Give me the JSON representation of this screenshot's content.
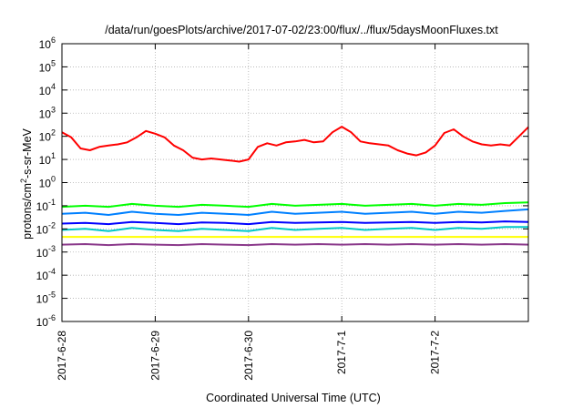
{
  "chart_data": {
    "type": "line",
    "title": "/data/run/goesPlots/archive/2017-07-02/23:00/flux/../flux/5daysMoonFluxes.txt",
    "xlabel": "Coordinated Universal Time (UTC)",
    "ylabel": {
      "base": "protons/cm",
      "sup": "2",
      "rest": "-s-sr-MeV"
    },
    "yscale": "log",
    "ylim": [
      1e-06,
      1000000.0
    ],
    "xlim": [
      0,
      5
    ],
    "grid": true,
    "y_ticks": [
      {
        "value": 1e-06,
        "base": "10",
        "exp": "-6"
      },
      {
        "value": 1e-05,
        "base": "10",
        "exp": "-5"
      },
      {
        "value": 0.0001,
        "base": "10",
        "exp": "-4"
      },
      {
        "value": 0.001,
        "base": "10",
        "exp": "-3"
      },
      {
        "value": 0.01,
        "base": "10",
        "exp": "-2"
      },
      {
        "value": 0.1,
        "base": "10",
        "exp": "-1"
      },
      {
        "value": 1,
        "base": "10",
        "exp": "0"
      },
      {
        "value": 10,
        "base": "10",
        "exp": "1"
      },
      {
        "value": 100,
        "base": "10",
        "exp": "2"
      },
      {
        "value": 1000,
        "base": "10",
        "exp": "3"
      },
      {
        "value": 10000,
        "base": "10",
        "exp": "4"
      },
      {
        "value": 100000,
        "base": "10",
        "exp": "5"
      },
      {
        "value": 1000000,
        "base": "10",
        "exp": "6"
      }
    ],
    "x_ticks": [
      {
        "value": 0,
        "label": "2017-6-28"
      },
      {
        "value": 1,
        "label": "2017-6-29"
      },
      {
        "value": 2,
        "label": "2017-6-30"
      },
      {
        "value": 3,
        "label": "2017-7-1"
      },
      {
        "value": 4,
        "label": "2017-7-2"
      }
    ],
    "series": [
      {
        "color": "#ff0000",
        "x": [
          0,
          0.1,
          0.2,
          0.3,
          0.4,
          0.5,
          0.6,
          0.7,
          0.8,
          0.9,
          1.0,
          1.1,
          1.2,
          1.3,
          1.4,
          1.5,
          1.6,
          1.7,
          1.8,
          1.9,
          2.0,
          2.1,
          2.2,
          2.3,
          2.4,
          2.5,
          2.6,
          2.7,
          2.8,
          2.9,
          3.0,
          3.1,
          3.2,
          3.3,
          3.4,
          3.5,
          3.6,
          3.7,
          3.8,
          3.9,
          4.0,
          4.1,
          4.2,
          4.3,
          4.4,
          4.5,
          4.6,
          4.7,
          4.8,
          4.9,
          5.0
        ],
        "values": [
          150,
          90,
          30,
          25,
          35,
          40,
          45,
          55,
          90,
          170,
          130,
          90,
          40,
          25,
          12,
          10,
          11,
          10,
          9,
          8,
          10,
          35,
          50,
          40,
          55,
          60,
          70,
          55,
          60,
          150,
          260,
          150,
          60,
          50,
          45,
          40,
          25,
          18,
          15,
          20,
          40,
          140,
          200,
          100,
          60,
          45,
          40,
          45,
          40,
          100,
          250
        ]
      },
      {
        "color": "#00ff00",
        "x": [
          0,
          0.25,
          0.5,
          0.75,
          1.0,
          1.25,
          1.5,
          1.75,
          2.0,
          2.25,
          2.5,
          2.75,
          3.0,
          3.25,
          3.5,
          3.75,
          4.0,
          4.25,
          4.5,
          4.75,
          5.0
        ],
        "values": [
          0.09,
          0.1,
          0.09,
          0.12,
          0.1,
          0.09,
          0.11,
          0.1,
          0.09,
          0.12,
          0.1,
          0.11,
          0.12,
          0.1,
          0.11,
          0.12,
          0.1,
          0.12,
          0.11,
          0.13,
          0.14
        ]
      },
      {
        "color": "#0080ff",
        "x": [
          0,
          0.25,
          0.5,
          0.75,
          1.0,
          1.25,
          1.5,
          1.75,
          2.0,
          2.25,
          2.5,
          2.75,
          3.0,
          3.25,
          3.5,
          3.75,
          4.0,
          4.25,
          4.5,
          4.75,
          5.0
        ],
        "values": [
          0.045,
          0.05,
          0.04,
          0.055,
          0.045,
          0.04,
          0.05,
          0.045,
          0.04,
          0.055,
          0.045,
          0.05,
          0.055,
          0.045,
          0.05,
          0.055,
          0.045,
          0.055,
          0.05,
          0.06,
          0.07
        ]
      },
      {
        "color": "#0000ff",
        "x": [
          0,
          0.25,
          0.5,
          0.75,
          1.0,
          1.25,
          1.5,
          1.75,
          2.0,
          2.25,
          2.5,
          2.75,
          3.0,
          3.25,
          3.5,
          3.75,
          4.0,
          4.25,
          4.5,
          4.75,
          5.0
        ],
        "values": [
          0.017,
          0.018,
          0.016,
          0.02,
          0.018,
          0.016,
          0.019,
          0.018,
          0.016,
          0.02,
          0.018,
          0.019,
          0.02,
          0.018,
          0.019,
          0.02,
          0.018,
          0.02,
          0.019,
          0.021,
          0.02
        ]
      },
      {
        "color": "#00c8c8",
        "x": [
          0,
          0.25,
          0.5,
          0.75,
          1.0,
          1.25,
          1.5,
          1.75,
          2.0,
          2.25,
          2.5,
          2.75,
          3.0,
          3.25,
          3.5,
          3.75,
          4.0,
          4.25,
          4.5,
          4.75,
          5.0
        ],
        "values": [
          0.009,
          0.01,
          0.008,
          0.011,
          0.009,
          0.008,
          0.01,
          0.009,
          0.008,
          0.011,
          0.009,
          0.01,
          0.011,
          0.009,
          0.01,
          0.011,
          0.009,
          0.011,
          0.01,
          0.012,
          0.012
        ]
      },
      {
        "color": "#ffff00",
        "x": [
          0,
          0.25,
          0.5,
          0.75,
          1.0,
          1.25,
          1.5,
          1.75,
          2.0,
          2.25,
          2.5,
          2.75,
          3.0,
          3.25,
          3.5,
          3.75,
          4.0,
          4.25,
          4.5,
          4.75,
          5.0
        ],
        "values": [
          0.0045,
          0.0045,
          0.0045,
          0.0045,
          0.0045,
          0.0045,
          0.0045,
          0.0045,
          0.0045,
          0.0045,
          0.0045,
          0.0045,
          0.0045,
          0.0045,
          0.0045,
          0.0045,
          0.0045,
          0.0045,
          0.0045,
          0.0045,
          0.0045
        ]
      },
      {
        "color": "#8b3a8b",
        "x": [
          0,
          0.25,
          0.5,
          0.75,
          1.0,
          1.25,
          1.5,
          1.75,
          2.0,
          2.25,
          2.5,
          2.75,
          3.0,
          3.25,
          3.5,
          3.75,
          4.0,
          4.25,
          4.5,
          4.75,
          5.0
        ],
        "values": [
          0.0021,
          0.0022,
          0.002,
          0.0022,
          0.0021,
          0.002,
          0.0022,
          0.0021,
          0.002,
          0.0022,
          0.0021,
          0.0022,
          0.0021,
          0.0022,
          0.0021,
          0.0022,
          0.0021,
          0.0022,
          0.0021,
          0.0022,
          0.0021
        ]
      }
    ]
  }
}
